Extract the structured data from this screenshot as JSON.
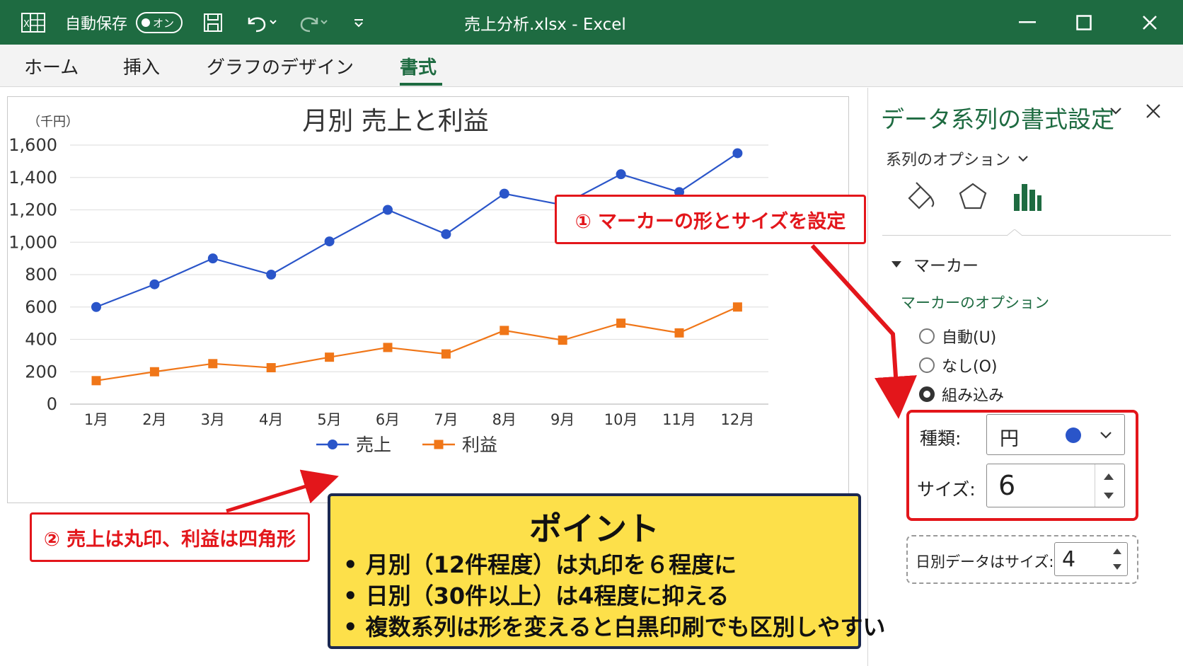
{
  "window": {
    "autosave_label": "自動保存",
    "autosave_state": "オン",
    "file_title": "売上分析.xlsx  -  Excel"
  },
  "ribbon": {
    "tabs": [
      {
        "label": "ホーム"
      },
      {
        "label": "挿入"
      },
      {
        "label": "グラフのデザイン"
      },
      {
        "label": "書式"
      }
    ],
    "active_tab": "書式"
  },
  "chart_data": {
    "type": "line",
    "title": "月別 売上と利益",
    "unit_label": "（千円）",
    "categories": [
      "1月",
      "2月",
      "3月",
      "4月",
      "5月",
      "6月",
      "7月",
      "8月",
      "9月",
      "10月",
      "11月",
      "12月"
    ],
    "y_ticks": [
      "1,600",
      "1,400",
      "1,200",
      "1,000",
      "800",
      "600",
      "400",
      "200",
      "0"
    ],
    "ylim": [
      0,
      1600
    ],
    "grid": true,
    "legend_position": "bottom",
    "series": [
      {
        "name": "売上",
        "marker": "circle",
        "color": "#2a55c9",
        "values": [
          600,
          740,
          900,
          800,
          1005,
          1200,
          1050,
          1300,
          1230,
          1420,
          1310,
          1550
        ]
      },
      {
        "name": "利益",
        "marker": "square",
        "color": "#f07618",
        "values": [
          145,
          200,
          250,
          225,
          290,
          350,
          310,
          455,
          395,
          500,
          440,
          600
        ]
      }
    ]
  },
  "callouts": {
    "marker_setting": "① マーカーの形とサイズを設定",
    "shape_note": "② 売上は丸印、利益は四角形"
  },
  "point": {
    "title": "ポイント",
    "lines": [
      "• 月別（12件程度）は丸印を６程度に",
      "• 日別（30件以上）は4程度に抑える",
      "• 複数系列は形を変えると白黒印刷でも区別しやすい"
    ]
  },
  "panel": {
    "title": "データ系列の書式設定",
    "series_options": "系列のオプション",
    "marker_section": "マーカー",
    "marker_options": "マーカーのオプション",
    "radio_auto": "自動(U)",
    "radio_none": "なし(O)",
    "radio_builtin": "組み込み",
    "type_label": "種類:",
    "type_value": "円",
    "size_label": "サイズ:",
    "size_value": "6",
    "daily_note": "日別データは",
    "daily_size_label": "サイズ:",
    "daily_size_value": "4",
    "marker_color": "#2a55c9"
  }
}
